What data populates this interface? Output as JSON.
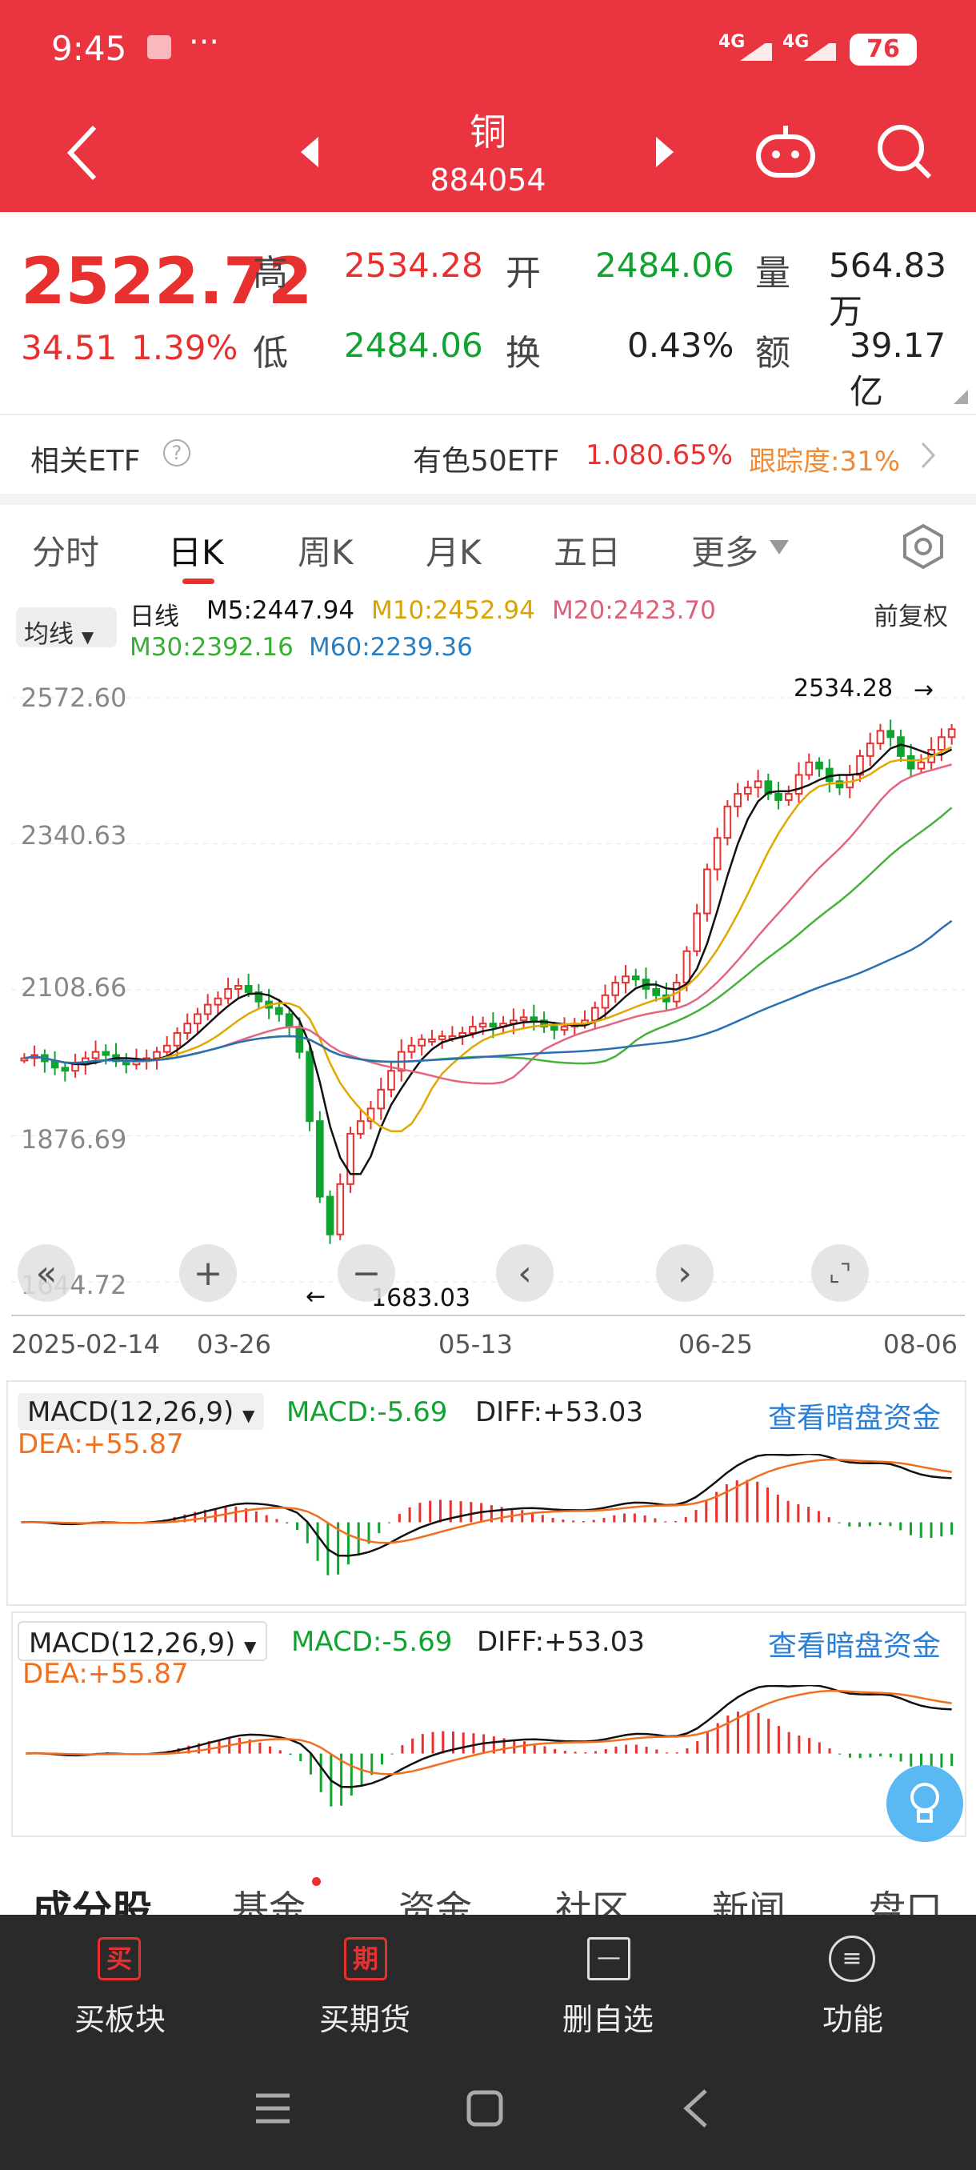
{
  "status": {
    "time": "9:45",
    "dots": "···",
    "signal1": "4G",
    "signal2": "4G",
    "battery": "76"
  },
  "header": {
    "title": "铜",
    "code": "884054"
  },
  "quote": {
    "price": "2522.72",
    "change": "34.51",
    "pct": "1.39%",
    "high_label": "高",
    "high": "2534.28",
    "open_label": "开",
    "open": "2484.06",
    "vol_label": "量",
    "vol": "564.83万",
    "low_label": "低",
    "low": "2484.06",
    "turn_label": "换",
    "turn": "0.43%",
    "amt_label": "额",
    "amt": "39.17亿"
  },
  "etf": {
    "label": "相关ETF",
    "name": "有色50ETF",
    "price": "1.08",
    "pct": "0.65%",
    "track": "跟踪度:31%"
  },
  "tabs": [
    "分时",
    "日K",
    "周K",
    "月K",
    "五日",
    "更多"
  ],
  "ma": {
    "selector": "均线",
    "period": "日线",
    "m5": "M5:2447.94",
    "m10": "M10:2452.94",
    "m20": "M20:2423.70",
    "m30": "M30:2392.16",
    "m60": "M60:2239.36",
    "adjust": "前复权"
  },
  "chart_data": {
    "type": "candlestick",
    "ylabels": [
      "2572.60",
      "2340.63",
      "2108.66",
      "1876.69",
      "1644.72"
    ],
    "ylim": [
      1644.72,
      2572.6
    ],
    "max_label": "2534.28",
    "min_label": "1683.03",
    "dates": [
      "2025-02-14",
      "03-26",
      "05-13",
      "06-25",
      "08-06"
    ],
    "close": [
      2000,
      2005,
      1995,
      1985,
      1980,
      1990,
      2000,
      2010,
      2005,
      1995,
      1990,
      1995,
      2000,
      2010,
      2020,
      2040,
      2055,
      2070,
      2085,
      2095,
      2110,
      2115,
      2105,
      2090,
      2080,
      2070,
      2050,
      2010,
      1900,
      1780,
      1720,
      1800,
      1880,
      1900,
      1920,
      1950,
      1980,
      2010,
      2020,
      2030,
      2030,
      2035,
      2035,
      2040,
      2050,
      2055,
      2050,
      2055,
      2060,
      2065,
      2060,
      2050,
      2045,
      2050,
      2055,
      2060,
      2080,
      2100,
      2120,
      2130,
      2125,
      2110,
      2100,
      2090,
      2120,
      2170,
      2230,
      2300,
      2350,
      2400,
      2420,
      2430,
      2440,
      2420,
      2410,
      2420,
      2450,
      2470,
      2460,
      2440,
      2430,
      2450,
      2480,
      2500,
      2520,
      2510,
      2480,
      2460,
      2470,
      2490,
      2510,
      2522.72
    ]
  },
  "macd": {
    "selector": "MACD(12,26,9)",
    "macd": "MACD:-5.69",
    "diff": "DIFF:+53.03",
    "dea": "DEA:+55.87",
    "link": "查看暗盘资金"
  },
  "bottom_tabs": [
    "成分股",
    "基金",
    "资金",
    "社区",
    "新闻",
    "盘口"
  ],
  "toolbar": [
    {
      "icon": "买",
      "label": "买板块"
    },
    {
      "icon": "期",
      "label": "买期货"
    },
    {
      "icon": "—",
      "label": "删自选"
    },
    {
      "icon": "≡",
      "label": "功能"
    }
  ]
}
